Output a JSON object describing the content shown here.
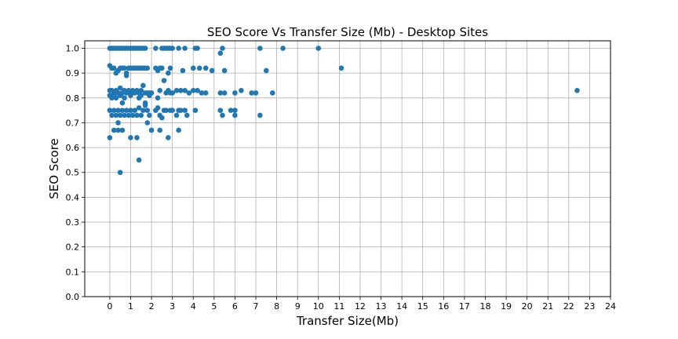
{
  "chart_data": {
    "type": "scatter",
    "title": "SEO Score Vs Transfer Size (Mb) - Desktop Sites",
    "xlabel": "Transfer Size(Mb)",
    "ylabel": "SEO Score",
    "xlim": [
      -1.2,
      24
    ],
    "ylim": [
      0,
      1.03
    ],
    "xticks": [
      0,
      1,
      2,
      3,
      4,
      5,
      6,
      7,
      8,
      9,
      10,
      11,
      12,
      13,
      14,
      15,
      16,
      17,
      18,
      19,
      20,
      21,
      22,
      23,
      24
    ],
    "yticks": [
      0.0,
      0.1,
      0.2,
      0.3,
      0.4,
      0.5,
      0.6,
      0.7,
      0.8,
      0.9,
      1.0
    ],
    "grid": true,
    "marker_color": "#1f77b4",
    "series": [
      {
        "points": [
          [
            0.0,
            1.0
          ],
          [
            0.1,
            1.0
          ],
          [
            0.2,
            1.0
          ],
          [
            0.3,
            1.0
          ],
          [
            0.4,
            1.0
          ],
          [
            0.5,
            1.0
          ],
          [
            0.6,
            1.0
          ],
          [
            0.7,
            1.0
          ],
          [
            0.8,
            1.0
          ],
          [
            0.9,
            1.0
          ],
          [
            1.0,
            1.0
          ],
          [
            1.1,
            1.0
          ],
          [
            1.2,
            1.0
          ],
          [
            1.3,
            1.0
          ],
          [
            1.4,
            1.0
          ],
          [
            1.5,
            1.0
          ],
          [
            1.6,
            1.0
          ],
          [
            1.7,
            1.0
          ],
          [
            2.2,
            1.0
          ],
          [
            2.5,
            1.0
          ],
          [
            2.6,
            1.0
          ],
          [
            2.7,
            1.0
          ],
          [
            2.8,
            1.0
          ],
          [
            2.9,
            1.0
          ],
          [
            3.0,
            1.0
          ],
          [
            3.3,
            1.0
          ],
          [
            3.6,
            1.0
          ],
          [
            4.1,
            1.0
          ],
          [
            4.2,
            1.0
          ],
          [
            5.4,
            1.0
          ],
          [
            5.3,
            0.98
          ],
          [
            7.2,
            1.0
          ],
          [
            8.3,
            1.0
          ],
          [
            10.0,
            1.0
          ],
          [
            0.0,
            0.93
          ],
          [
            0.1,
            0.92
          ],
          [
            0.2,
            0.92
          ],
          [
            0.3,
            0.9
          ],
          [
            0.4,
            0.91
          ],
          [
            0.5,
            0.92
          ],
          [
            0.6,
            0.92
          ],
          [
            0.7,
            0.92
          ],
          [
            0.8,
            0.89
          ],
          [
            0.8,
            0.9
          ],
          [
            0.9,
            0.92
          ],
          [
            1.0,
            0.92
          ],
          [
            1.1,
            0.92
          ],
          [
            1.2,
            0.92
          ],
          [
            1.3,
            0.92
          ],
          [
            1.4,
            0.92
          ],
          [
            1.5,
            0.92
          ],
          [
            1.6,
            0.92
          ],
          [
            1.7,
            0.92
          ],
          [
            1.8,
            0.92
          ],
          [
            2.2,
            0.92
          ],
          [
            2.3,
            0.91
          ],
          [
            2.4,
            0.92
          ],
          [
            2.5,
            0.92
          ],
          [
            2.6,
            0.87
          ],
          [
            2.8,
            0.9
          ],
          [
            2.9,
            0.92
          ],
          [
            3.5,
            0.91
          ],
          [
            4.0,
            0.92
          ],
          [
            4.3,
            0.92
          ],
          [
            4.6,
            0.92
          ],
          [
            4.9,
            0.91
          ],
          [
            5.5,
            0.91
          ],
          [
            7.5,
            0.91
          ],
          [
            11.1,
            0.92
          ],
          [
            0.0,
            0.83
          ],
          [
            0.1,
            0.83
          ],
          [
            0.2,
            0.82
          ],
          [
            0.3,
            0.83
          ],
          [
            0.4,
            0.82
          ],
          [
            0.5,
            0.84
          ],
          [
            0.6,
            0.82
          ],
          [
            0.7,
            0.83
          ],
          [
            0.8,
            0.82
          ],
          [
            0.9,
            0.83
          ],
          [
            1.0,
            0.82
          ],
          [
            1.1,
            0.83
          ],
          [
            1.2,
            0.82
          ],
          [
            1.3,
            0.83
          ],
          [
            1.4,
            0.82
          ],
          [
            1.5,
            0.83
          ],
          [
            1.6,
            0.85
          ],
          [
            1.7,
            0.82
          ],
          [
            1.8,
            0.82
          ],
          [
            1.9,
            0.82
          ],
          [
            2.0,
            0.82
          ],
          [
            2.3,
            0.8
          ],
          [
            2.4,
            0.83
          ],
          [
            2.7,
            0.82
          ],
          [
            2.8,
            0.83
          ],
          [
            2.9,
            0.82
          ],
          [
            3.0,
            0.82
          ],
          [
            3.2,
            0.83
          ],
          [
            3.4,
            0.83
          ],
          [
            3.6,
            0.83
          ],
          [
            3.8,
            0.82
          ],
          [
            4.0,
            0.83
          ],
          [
            4.2,
            0.83
          ],
          [
            4.4,
            0.82
          ],
          [
            4.6,
            0.82
          ],
          [
            5.3,
            0.82
          ],
          [
            5.5,
            0.82
          ],
          [
            6.0,
            0.82
          ],
          [
            6.3,
            0.83
          ],
          [
            6.8,
            0.82
          ],
          [
            7.0,
            0.82
          ],
          [
            7.8,
            0.82
          ],
          [
            22.4,
            0.83
          ],
          [
            0.0,
            0.81
          ],
          [
            0.1,
            0.8
          ],
          [
            0.2,
            0.81
          ],
          [
            0.3,
            0.8
          ],
          [
            0.5,
            0.81
          ],
          [
            0.6,
            0.78
          ],
          [
            0.7,
            0.8
          ],
          [
            1.0,
            0.81
          ],
          [
            1.4,
            0.8
          ],
          [
            1.5,
            0.81
          ],
          [
            1.7,
            0.78
          ],
          [
            1.9,
            0.81
          ],
          [
            0.0,
            0.75
          ],
          [
            0.1,
            0.73
          ],
          [
            0.2,
            0.75
          ],
          [
            0.3,
            0.73
          ],
          [
            0.4,
            0.75
          ],
          [
            0.5,
            0.73
          ],
          [
            0.6,
            0.75
          ],
          [
            0.7,
            0.73
          ],
          [
            0.8,
            0.75
          ],
          [
            0.9,
            0.73
          ],
          [
            1.0,
            0.75
          ],
          [
            1.1,
            0.73
          ],
          [
            1.2,
            0.75
          ],
          [
            1.3,
            0.73
          ],
          [
            1.4,
            0.76
          ],
          [
            1.5,
            0.73
          ],
          [
            1.6,
            0.75
          ],
          [
            1.7,
            0.77
          ],
          [
            1.8,
            0.75
          ],
          [
            1.9,
            0.73
          ],
          [
            2.2,
            0.75
          ],
          [
            2.3,
            0.76
          ],
          [
            2.4,
            0.73
          ],
          [
            2.5,
            0.72
          ],
          [
            2.6,
            0.75
          ],
          [
            2.7,
            0.75
          ],
          [
            2.9,
            0.75
          ],
          [
            3.0,
            0.75
          ],
          [
            3.2,
            0.73
          ],
          [
            3.3,
            0.75
          ],
          [
            3.4,
            0.75
          ],
          [
            3.6,
            0.75
          ],
          [
            3.7,
            0.73
          ],
          [
            4.1,
            0.75
          ],
          [
            5.3,
            0.75
          ],
          [
            5.4,
            0.73
          ],
          [
            5.8,
            0.75
          ],
          [
            6.0,
            0.73
          ],
          [
            6.0,
            0.75
          ],
          [
            7.2,
            0.73
          ],
          [
            0.0,
            0.64
          ],
          [
            0.2,
            0.67
          ],
          [
            0.4,
            0.7
          ],
          [
            0.4,
            0.67
          ],
          [
            0.6,
            0.67
          ],
          [
            1.0,
            0.64
          ],
          [
            1.3,
            0.64
          ],
          [
            1.8,
            0.7
          ],
          [
            2.0,
            0.67
          ],
          [
            2.4,
            0.67
          ],
          [
            2.8,
            0.64
          ],
          [
            3.3,
            0.67
          ],
          [
            1.4,
            0.55
          ],
          [
            0.5,
            0.5
          ]
        ]
      }
    ]
  }
}
